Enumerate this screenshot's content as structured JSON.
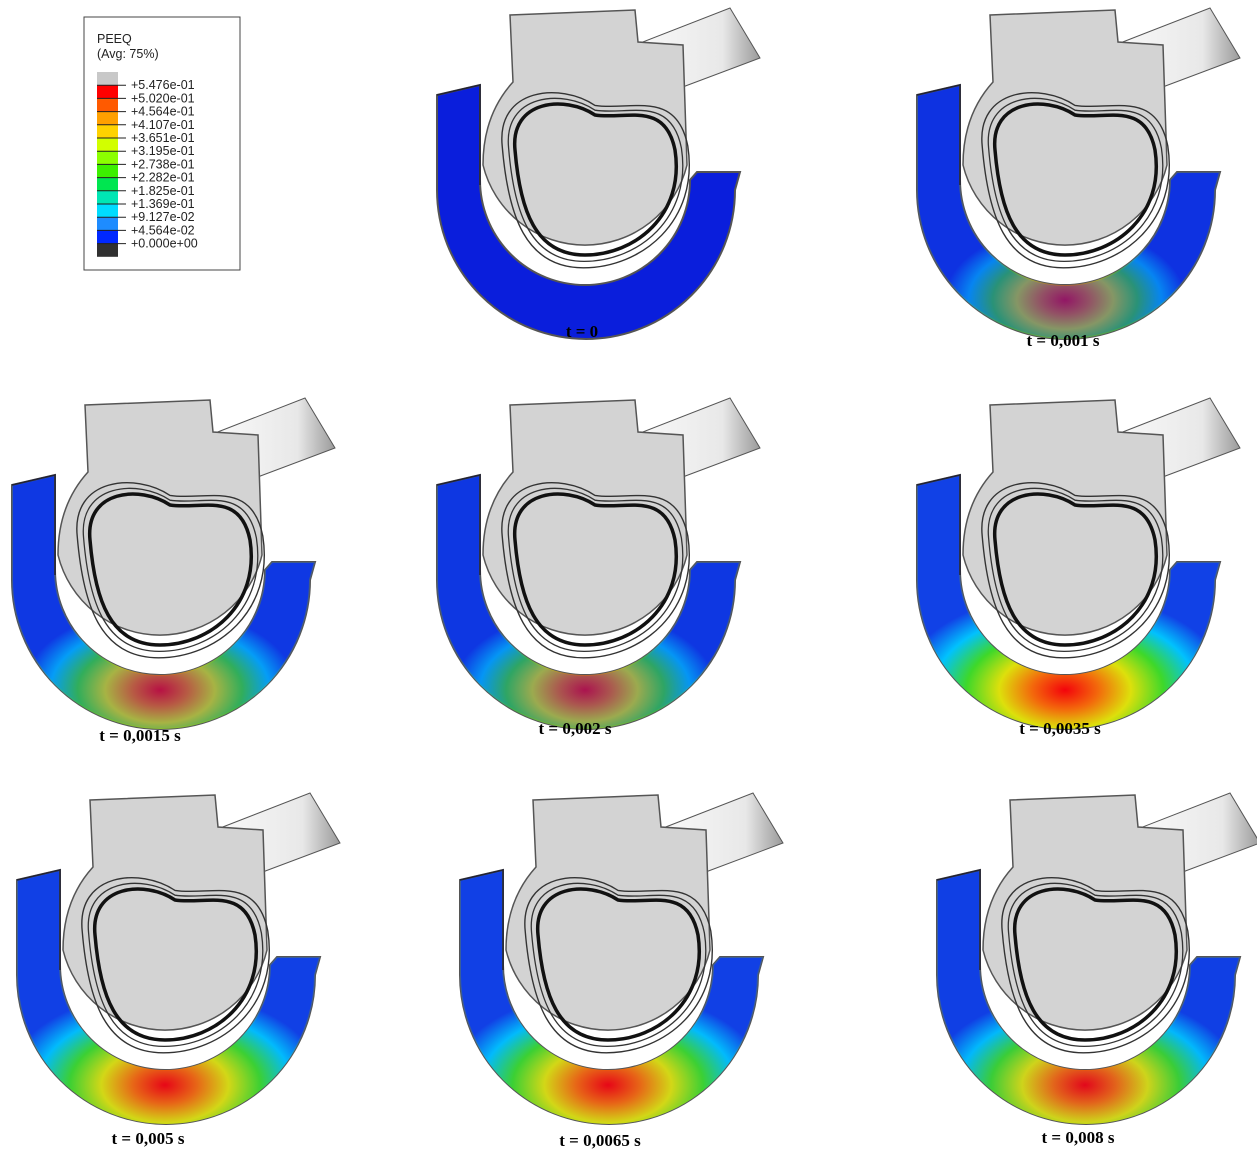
{
  "legend": {
    "title": "PEEQ",
    "subtitle": "(Avg: 75%)",
    "labels": [
      "+5.476e-01",
      "+5.020e-01",
      "+4.564e-01",
      "+4.107e-01",
      "+3.651e-01",
      "+3.195e-01",
      "+2.738e-01",
      "+2.282e-01",
      "+1.825e-01",
      "+1.369e-01",
      "+9.127e-02",
      "+4.564e-02",
      "+0.000e+00"
    ],
    "colors": [
      "#c8c8c8",
      "#ff0000",
      "#ff5a00",
      "#ffa000",
      "#ffd200",
      "#d2ff00",
      "#8cff00",
      "#3cf000",
      "#00e650",
      "#00e6b4",
      "#00dcff",
      "#1e8cff",
      "#0028ff",
      "#303030"
    ]
  },
  "panels": [
    {
      "caption": "t = 0"
    },
    {
      "caption": "t = 0,001 s"
    },
    {
      "caption": "t =  0,0015 s"
    },
    {
      "caption": "t = 0,002 s"
    },
    {
      "caption": "t = 0,0035 s"
    },
    {
      "caption": "t = 0,005 s"
    },
    {
      "caption": "t = 0,0065  s"
    },
    {
      "caption": "t = 0,008 s"
    }
  ]
}
